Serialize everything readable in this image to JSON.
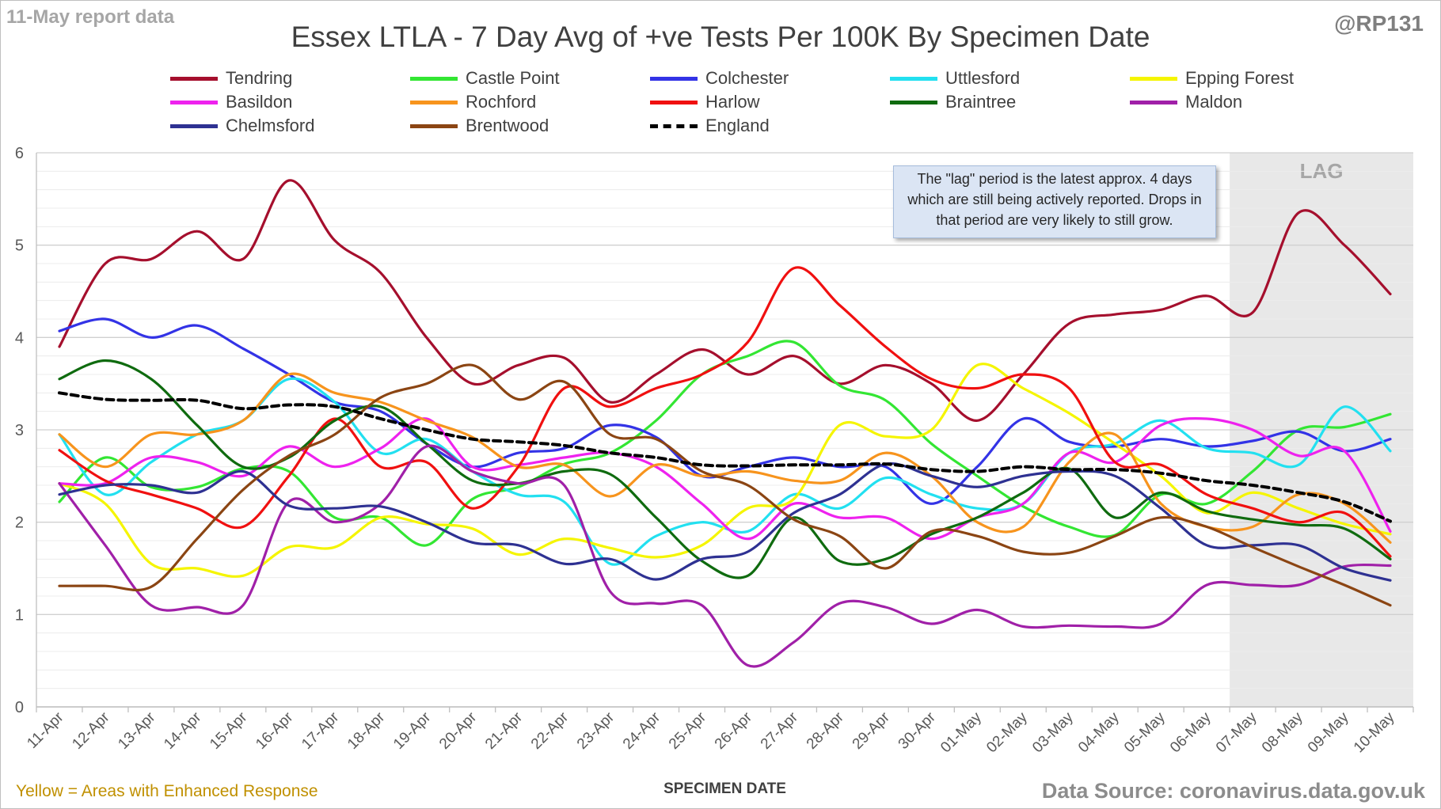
{
  "header": {
    "report_date": "11-May report data",
    "handle": "@RP131",
    "title": "Essex LTLA - 7 Day Avg of +ve Tests Per 100K By Specimen Date"
  },
  "footer": {
    "note": "Yellow = Areas with Enhanced Response",
    "source": "Data Source: coronavirus.data.gov.uk"
  },
  "annotation": {
    "lag_note": "The \"lag\" period is the latest approx. 4 days which are still being actively reported. Drops in that period are very likely to still grow.",
    "lag_label": "LAG"
  },
  "chart_data": {
    "type": "line",
    "title": "Essex LTLA - 7 Day Avg of +ve Tests Per 100K By Specimen Date",
    "xlabel": "SPECIMEN DATE",
    "ylabel": "",
    "ylim": [
      0,
      6
    ],
    "yticks": [
      "0",
      "1",
      "2",
      "3",
      "4",
      "5",
      "6"
    ],
    "grid": true,
    "legend_position": "top",
    "lag_period": [
      "07-May",
      "10-May"
    ],
    "categories": [
      "11-Apr",
      "12-Apr",
      "13-Apr",
      "14-Apr",
      "15-Apr",
      "16-Apr",
      "17-Apr",
      "18-Apr",
      "19-Apr",
      "20-Apr",
      "21-Apr",
      "22-Apr",
      "23-Apr",
      "24-Apr",
      "25-Apr",
      "26-Apr",
      "27-Apr",
      "28-Apr",
      "29-Apr",
      "30-Apr",
      "01-May",
      "02-May",
      "03-May",
      "04-May",
      "05-May",
      "06-May",
      "07-May",
      "08-May",
      "09-May",
      "10-May"
    ],
    "series": [
      {
        "name": "Tendring",
        "color": "#a50f2d",
        "values": [
          3.9,
          4.8,
          4.85,
          5.15,
          4.85,
          5.7,
          5.05,
          4.7,
          4.0,
          3.5,
          3.7,
          3.78,
          3.3,
          3.6,
          3.87,
          3.6,
          3.8,
          3.5,
          3.7,
          3.5,
          3.1,
          3.6,
          4.15,
          4.25,
          4.3,
          4.45,
          4.27,
          5.35,
          5.0,
          4.47
        ]
      },
      {
        "name": "Castle Point",
        "color": "#33e633",
        "values": [
          2.22,
          2.7,
          2.38,
          2.38,
          2.58,
          2.55,
          2.05,
          2.05,
          1.75,
          2.25,
          2.38,
          2.63,
          2.75,
          3.1,
          3.6,
          3.8,
          3.95,
          3.48,
          3.32,
          2.85,
          2.5,
          2.17,
          1.95,
          1.86,
          2.3,
          2.2,
          2.55,
          3.0,
          3.03,
          3.17
        ]
      },
      {
        "name": "Colchester",
        "color": "#3333e6",
        "values": [
          4.07,
          4.2,
          4.0,
          4.13,
          3.88,
          3.6,
          3.3,
          3.2,
          2.85,
          2.6,
          2.75,
          2.8,
          3.05,
          2.92,
          2.5,
          2.6,
          2.7,
          2.6,
          2.6,
          2.2,
          2.6,
          3.12,
          2.87,
          2.82,
          2.9,
          2.82,
          2.88,
          2.98,
          2.77,
          2.9
        ]
      },
      {
        "name": "Uttlesford",
        "color": "#22e0f0",
        "values": [
          2.95,
          2.3,
          2.65,
          2.95,
          3.1,
          3.55,
          3.3,
          2.75,
          2.9,
          2.55,
          2.3,
          2.22,
          1.55,
          1.85,
          2.0,
          1.9,
          2.3,
          2.15,
          2.48,
          2.3,
          2.15,
          2.2,
          2.75,
          2.85,
          3.1,
          2.8,
          2.75,
          2.62,
          3.25,
          2.77
        ]
      },
      {
        "name": "Epping Forest",
        "color": "#f5f500",
        "values": [
          2.42,
          2.2,
          1.55,
          1.5,
          1.42,
          1.73,
          1.73,
          2.05,
          1.98,
          1.93,
          1.65,
          1.82,
          1.72,
          1.62,
          1.75,
          2.15,
          2.25,
          3.05,
          2.93,
          3.0,
          3.7,
          3.45,
          3.18,
          2.85,
          2.5,
          2.1,
          2.32,
          2.15,
          1.98,
          1.87
        ]
      },
      {
        "name": "Basildon",
        "color": "#ee22ee",
        "values": [
          2.42,
          2.42,
          2.7,
          2.65,
          2.5,
          2.82,
          2.6,
          2.8,
          3.12,
          2.6,
          2.62,
          2.7,
          2.75,
          2.6,
          2.2,
          1.82,
          2.2,
          2.05,
          2.05,
          1.82,
          2.05,
          2.2,
          2.75,
          2.65,
          3.05,
          3.12,
          3.0,
          2.72,
          2.77,
          1.9
        ]
      },
      {
        "name": "Rochford",
        "color": "#f7941d",
        "values": [
          2.95,
          2.6,
          2.95,
          2.95,
          3.1,
          3.6,
          3.4,
          3.3,
          3.1,
          2.92,
          2.6,
          2.62,
          2.28,
          2.62,
          2.5,
          2.55,
          2.45,
          2.45,
          2.75,
          2.5,
          2.0,
          1.95,
          2.65,
          2.95,
          2.2,
          1.95,
          1.95,
          2.3,
          2.2,
          1.78
        ]
      },
      {
        "name": "Harlow",
        "color": "#f01010",
        "values": [
          2.78,
          2.45,
          2.3,
          2.15,
          1.95,
          2.5,
          3.12,
          2.6,
          2.65,
          2.15,
          2.6,
          3.45,
          3.25,
          3.45,
          3.6,
          3.95,
          4.75,
          4.35,
          3.9,
          3.55,
          3.45,
          3.6,
          3.45,
          2.65,
          2.62,
          2.3,
          2.15,
          2.0,
          2.1,
          1.63
        ]
      },
      {
        "name": "Braintree",
        "color": "#0f6b0f",
        "values": [
          3.55,
          3.75,
          3.55,
          3.05,
          2.6,
          2.7,
          3.1,
          3.25,
          2.85,
          2.45,
          2.42,
          2.55,
          2.52,
          2.05,
          1.58,
          1.42,
          2.05,
          1.58,
          1.6,
          1.87,
          2.05,
          2.32,
          2.58,
          2.05,
          2.32,
          2.12,
          2.03,
          1.97,
          1.93,
          1.6
        ]
      },
      {
        "name": "Maldon",
        "color": "#a020a8",
        "values": [
          2.42,
          1.75,
          1.1,
          1.08,
          1.1,
          2.22,
          2.0,
          2.2,
          2.82,
          2.55,
          2.42,
          2.4,
          1.25,
          1.12,
          1.1,
          0.45,
          0.7,
          1.12,
          1.08,
          0.9,
          1.05,
          0.87,
          0.88,
          0.87,
          0.9,
          1.32,
          1.32,
          1.32,
          1.52,
          1.53
        ]
      },
      {
        "name": "Chelmsford",
        "color": "#2e3192",
        "values": [
          2.3,
          2.4,
          2.4,
          2.32,
          2.55,
          2.18,
          2.15,
          2.17,
          2.0,
          1.78,
          1.75,
          1.55,
          1.6,
          1.38,
          1.6,
          1.68,
          2.1,
          2.3,
          2.63,
          2.5,
          2.38,
          2.5,
          2.55,
          2.5,
          2.15,
          1.75,
          1.75,
          1.75,
          1.5,
          1.37
        ]
      },
      {
        "name": "Brentwood",
        "color": "#8b4513",
        "values": [
          1.31,
          1.31,
          1.3,
          1.82,
          2.35,
          2.72,
          2.95,
          3.35,
          3.5,
          3.7,
          3.33,
          3.52,
          2.95,
          2.9,
          2.55,
          2.4,
          2.03,
          1.85,
          1.5,
          1.9,
          1.85,
          1.68,
          1.67,
          1.85,
          2.05,
          1.95,
          1.73,
          1.52,
          1.32,
          1.1
        ]
      },
      {
        "name": "England",
        "color": "#000000",
        "dashed": true,
        "values": [
          3.4,
          3.33,
          3.32,
          3.32,
          3.23,
          3.27,
          3.25,
          3.12,
          3.0,
          2.9,
          2.87,
          2.83,
          2.75,
          2.7,
          2.62,
          2.61,
          2.62,
          2.62,
          2.63,
          2.57,
          2.55,
          2.6,
          2.57,
          2.57,
          2.53,
          2.45,
          2.4,
          2.32,
          2.22,
          2.01
        ]
      }
    ]
  }
}
